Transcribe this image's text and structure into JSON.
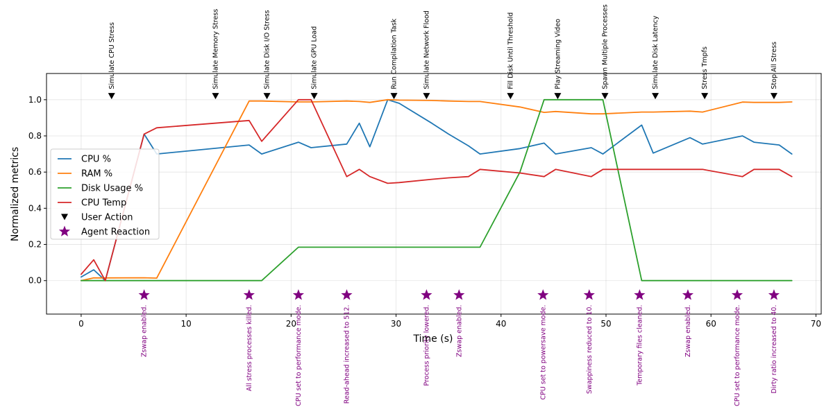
{
  "chart_data": {
    "type": "line",
    "title": "",
    "xlabel": "Time (s)",
    "ylabel": "Normalized metrics",
    "xlim": [
      -3.3,
      70.5
    ],
    "ylim": [
      -0.185,
      1.145
    ],
    "xticks": [
      0,
      10,
      20,
      30,
      40,
      50,
      60,
      70
    ],
    "yticks": [
      0.0,
      0.2,
      0.4,
      0.6,
      0.8,
      1.0
    ],
    "ytick_labels": [
      "0.0",
      "0.2",
      "0.4",
      "0.6",
      "0.8",
      "1.0"
    ],
    "grid": true,
    "legend_position": "center-left",
    "series": [
      {
        "name": "CPU %",
        "color": "#1f77b4",
        "points": [
          [
            0,
            0.02
          ],
          [
            1.2,
            0.06
          ],
          [
            2.3,
            0.0
          ],
          [
            6,
            0.81
          ],
          [
            7.2,
            0.7
          ],
          [
            16,
            0.75
          ],
          [
            17.2,
            0.7
          ],
          [
            20.7,
            0.765
          ],
          [
            21.9,
            0.735
          ],
          [
            25.3,
            0.755
          ],
          [
            26.5,
            0.87
          ],
          [
            27.5,
            0.74
          ],
          [
            29.2,
            1.0
          ],
          [
            30.3,
            0.98
          ],
          [
            33.4,
            0.87
          ],
          [
            35,
            0.81
          ],
          [
            36.9,
            0.745
          ],
          [
            38,
            0.7
          ],
          [
            41.8,
            0.73
          ],
          [
            44.1,
            0.76
          ],
          [
            45.2,
            0.7
          ],
          [
            48.6,
            0.735
          ],
          [
            49.7,
            0.7
          ],
          [
            53.4,
            0.86
          ],
          [
            54.5,
            0.705
          ],
          [
            58,
            0.79
          ],
          [
            59.2,
            0.755
          ],
          [
            63,
            0.8
          ],
          [
            64.1,
            0.765
          ],
          [
            66.5,
            0.75
          ],
          [
            67.7,
            0.7
          ]
        ]
      },
      {
        "name": "RAM %",
        "color": "#ff7f0e",
        "points": [
          [
            0,
            0.0
          ],
          [
            1.2,
            0.015
          ],
          [
            2.3,
            0.015
          ],
          [
            6,
            0.016
          ],
          [
            7.2,
            0.014
          ],
          [
            16,
            0.993
          ],
          [
            17.2,
            0.993
          ],
          [
            20.7,
            0.988
          ],
          [
            21.9,
            0.988
          ],
          [
            25.3,
            0.993
          ],
          [
            26.5,
            0.99
          ],
          [
            27.5,
            0.985
          ],
          [
            29.2,
            1.0
          ],
          [
            30.3,
            0.998
          ],
          [
            33.4,
            0.996
          ],
          [
            35,
            0.993
          ],
          [
            36.9,
            0.99
          ],
          [
            38,
            0.99
          ],
          [
            41.8,
            0.96
          ],
          [
            44.1,
            0.93
          ],
          [
            45.2,
            0.935
          ],
          [
            48.6,
            0.922
          ],
          [
            49.7,
            0.922
          ],
          [
            53.4,
            0.932
          ],
          [
            54.5,
            0.932
          ],
          [
            58,
            0.937
          ],
          [
            59.2,
            0.932
          ],
          [
            63,
            0.987
          ],
          [
            64.1,
            0.985
          ],
          [
            66.5,
            0.985
          ],
          [
            67.7,
            0.988
          ]
        ]
      },
      {
        "name": "Disk Usage %",
        "color": "#2ca02c",
        "points": [
          [
            0,
            0.0
          ],
          [
            1.2,
            0.0
          ],
          [
            2.3,
            0.0
          ],
          [
            6,
            0.0
          ],
          [
            7.2,
            0.0
          ],
          [
            16,
            0.0
          ],
          [
            17.2,
            0.0
          ],
          [
            20.7,
            0.185
          ],
          [
            21.9,
            0.185
          ],
          [
            25.3,
            0.185
          ],
          [
            26.5,
            0.185
          ],
          [
            27.5,
            0.185
          ],
          [
            29.2,
            0.185
          ],
          [
            30.3,
            0.185
          ],
          [
            33.4,
            0.185
          ],
          [
            35,
            0.185
          ],
          [
            36.9,
            0.185
          ],
          [
            38,
            0.185
          ],
          [
            41.8,
            0.6
          ],
          [
            44.1,
            1.0
          ],
          [
            45.2,
            1.0
          ],
          [
            48.6,
            1.0
          ],
          [
            49.7,
            1.0
          ],
          [
            53.4,
            0.0
          ],
          [
            54.5,
            0.0
          ],
          [
            58,
            0.0
          ],
          [
            59.2,
            0.0
          ],
          [
            63,
            0.0
          ],
          [
            64.1,
            0.0
          ],
          [
            66.5,
            0.0
          ],
          [
            67.7,
            0.0
          ]
        ]
      },
      {
        "name": "CPU Temp",
        "color": "#d62728",
        "points": [
          [
            0,
            0.035
          ],
          [
            1.2,
            0.115
          ],
          [
            2.3,
            0.0
          ],
          [
            6,
            0.81
          ],
          [
            7.2,
            0.845
          ],
          [
            16,
            0.885
          ],
          [
            17.2,
            0.77
          ],
          [
            20.7,
            1.0
          ],
          [
            21.9,
            1.0
          ],
          [
            25.3,
            0.575
          ],
          [
            26.5,
            0.615
          ],
          [
            27.5,
            0.575
          ],
          [
            29.2,
            0.538
          ],
          [
            30.3,
            0.542
          ],
          [
            33.4,
            0.56
          ],
          [
            35,
            0.568
          ],
          [
            36.9,
            0.575
          ],
          [
            38,
            0.615
          ],
          [
            41.8,
            0.595
          ],
          [
            44.1,
            0.575
          ],
          [
            45.2,
            0.615
          ],
          [
            48.6,
            0.575
          ],
          [
            49.7,
            0.615
          ],
          [
            53.4,
            0.615
          ],
          [
            54.5,
            0.615
          ],
          [
            58,
            0.615
          ],
          [
            59.2,
            0.615
          ],
          [
            63,
            0.575
          ],
          [
            64.1,
            0.615
          ],
          [
            66.5,
            0.615
          ],
          [
            67.7,
            0.575
          ]
        ]
      }
    ],
    "user_actions": {
      "name": "User Action",
      "y": 1.02,
      "items": [
        {
          "x": 2.9,
          "label": "Simulate CPU Stress"
        },
        {
          "x": 12.8,
          "label": "Simulate Memory Stress"
        },
        {
          "x": 17.7,
          "label": "Simulate Disk I/O Stress"
        },
        {
          "x": 22.2,
          "label": "Simulate GPU Load"
        },
        {
          "x": 29.8,
          "label": "Run Compilation Task"
        },
        {
          "x": 32.9,
          "label": "Simulate Network Flood"
        },
        {
          "x": 40.9,
          "label": "Fill Disk Until Threshold"
        },
        {
          "x": 45.4,
          "label": "Play Streaming Video"
        },
        {
          "x": 49.9,
          "label": "Spawn Multiple Processes"
        },
        {
          "x": 54.7,
          "label": "Simulate Disk Latency"
        },
        {
          "x": 59.4,
          "label": "Stress Tmpfs"
        },
        {
          "x": 66,
          "label": "Stop All Stress"
        }
      ]
    },
    "agent_reactions": {
      "name": "Agent Reaction",
      "y": -0.08,
      "color": "#800080",
      "items": [
        {
          "x": 6,
          "label": "Zswap enabled."
        },
        {
          "x": 16,
          "label": "All stress processes killed."
        },
        {
          "x": 20.7,
          "label": "CPU set to performance mode."
        },
        {
          "x": 25.3,
          "label": "Read-ahead increased to 512."
        },
        {
          "x": 32.9,
          "label": "Process priority lowered."
        },
        {
          "x": 36,
          "label": "Zswap enabled."
        },
        {
          "x": 44,
          "label": "CPU set to powersave mode."
        },
        {
          "x": 48.4,
          "label": "Swappiness reduced to 10."
        },
        {
          "x": 53.2,
          "label": "Temporary files cleaned."
        },
        {
          "x": 57.8,
          "label": "Zswap enabled."
        },
        {
          "x": 62.5,
          "label": "CPU set to performance mode."
        },
        {
          "x": 66,
          "label": "Dirty ratio increased to 40."
        }
      ]
    }
  }
}
